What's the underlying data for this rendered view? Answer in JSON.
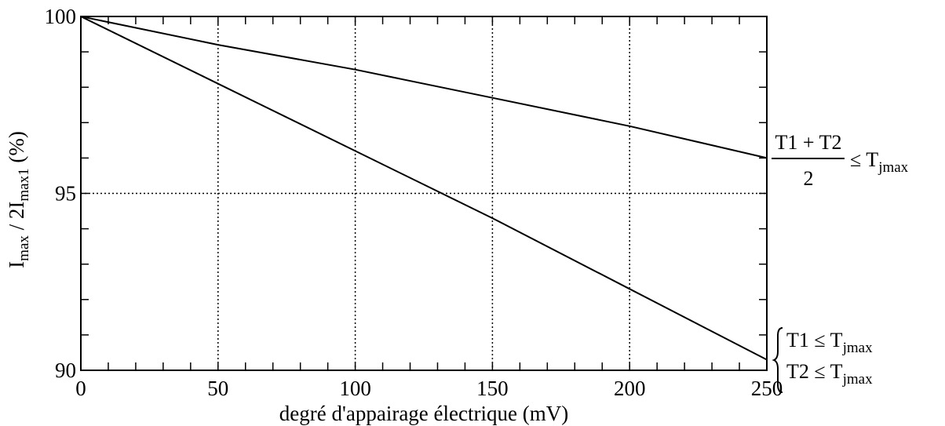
{
  "chart_data": {
    "type": "line",
    "xlabel": "degré d'appairage électrique (mV)",
    "ylabel": {
      "base": "I",
      "sub1": "max",
      "middle": " / 2I",
      "sub2": "max1",
      "unit": " (%)"
    },
    "xlim": [
      0,
      250
    ],
    "ylim": [
      90,
      100
    ],
    "x_ticks": [
      "0",
      "50",
      "100",
      "150",
      "200",
      "250"
    ],
    "y_ticks": [
      "100",
      "95",
      "90"
    ],
    "grid": "dotted",
    "series": [
      {
        "x": [
          0,
          50,
          100,
          150,
          200,
          250
        ],
        "y": [
          100,
          99.2,
          98.5,
          97.7,
          96.9,
          96.0
        ]
      },
      {
        "x": [
          0,
          50,
          100,
          150,
          200,
          250
        ],
        "y": [
          100,
          98.1,
          96.2,
          94.3,
          92.3,
          90.3
        ]
      }
    ],
    "annotations": {
      "top": {
        "numerator": "T1 + T2",
        "denominator": "2",
        "relation": "≤ T",
        "relation_sub": "jmax"
      },
      "bottom": {
        "line1": "T1 ≤ T",
        "line1_sub": "jmax",
        "line2": "T2 ≤ T",
        "line2_sub": "jmax"
      }
    }
  }
}
